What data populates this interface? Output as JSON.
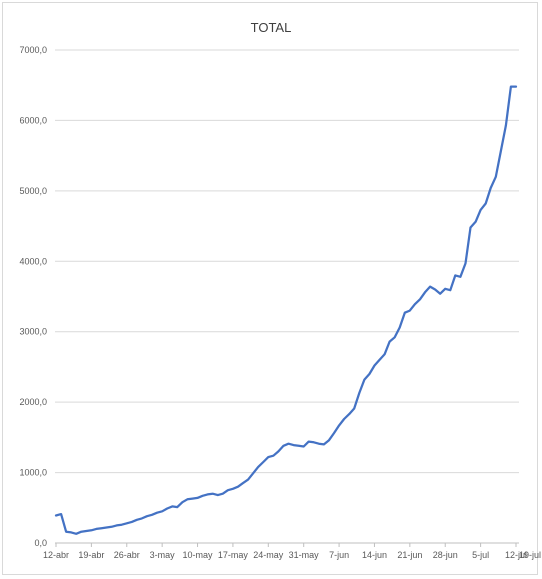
{
  "chart_data": {
    "type": "line",
    "title": "TOTAL",
    "xlabel": "",
    "ylabel": "",
    "ylim": [
      0,
      7000
    ],
    "y_ticks": [
      "0,0",
      "1000,0",
      "2000,0",
      "3000,0",
      "4000,0",
      "5000,0",
      "6000,0",
      "7000,0"
    ],
    "x_tick_labels": [
      "12-abr",
      "19-abr",
      "26-abr",
      "3-may",
      "10-may",
      "17-may",
      "24-may",
      "31-may",
      "7-jun",
      "14-jun",
      "21-jun",
      "28-jun",
      "5-jul",
      "12-jul",
      "19-jul"
    ],
    "grid": "horizontal",
    "legend": "none",
    "line_color": "#4472c4",
    "series": [
      {
        "values": [
          390,
          410,
          160,
          150,
          130,
          160,
          170,
          180,
          200,
          210,
          220,
          230,
          250,
          260,
          280,
          300,
          330,
          350,
          380,
          400,
          430,
          450,
          490,
          520,
          510,
          580,
          620,
          630,
          640,
          670,
          690,
          700,
          680,
          700,
          750,
          770,
          800,
          850,
          900,
          990,
          1080,
          1150,
          1220,
          1240,
          1300,
          1380,
          1410,
          1390,
          1380,
          1370,
          1440,
          1430,
          1410,
          1400,
          1460,
          1560,
          1670,
          1760,
          1830,
          1910,
          2130,
          2320,
          2400,
          2520,
          2600,
          2680,
          2860,
          2920,
          3060,
          3270,
          3300,
          3390,
          3460,
          3560,
          3640,
          3600,
          3540,
          3610,
          3590,
          3800,
          3780,
          3970,
          4480,
          4560,
          4730,
          4820,
          5040,
          5200,
          5560,
          5930,
          6480,
          6480
        ]
      }
    ]
  }
}
